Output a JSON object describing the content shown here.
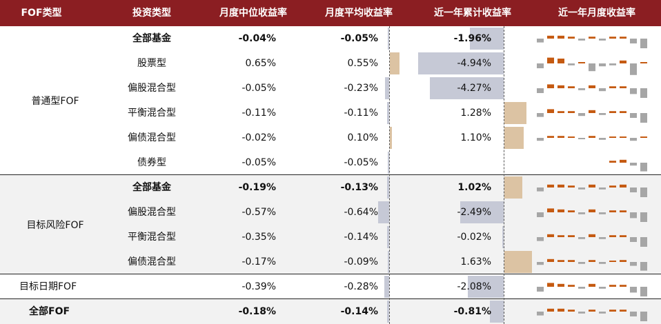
{
  "headers": [
    "FOF类型",
    "投资类型",
    "月度中位收益率",
    "月度平均收益率",
    "近一年累计收益率",
    "近一年月度收益率"
  ],
  "groups": [
    {
      "name": "普通型FOF"
    },
    {
      "name": "目标风险FOF"
    },
    {
      "name": ""
    },
    {
      "name": ""
    }
  ],
  "rows": [
    {
      "group": "",
      "type": "全部基金",
      "median": "-0.04%",
      "avg": "-0.05%",
      "cum": "-1.96%",
      "bold": true
    },
    {
      "group": "",
      "type": "股票型",
      "median": "0.65%",
      "avg": "0.55%",
      "cum": "-4.94%",
      "bold": false
    },
    {
      "group": "",
      "type": "偏股混合型",
      "median": "-0.05%",
      "avg": "-0.23%",
      "cum": "-4.27%",
      "bold": false
    },
    {
      "group": "",
      "type": "平衡混合型",
      "median": "-0.11%",
      "avg": "-0.11%",
      "cum": "1.28%",
      "bold": false
    },
    {
      "group": "",
      "type": "偏债混合型",
      "median": "-0.02%",
      "avg": "0.10%",
      "cum": "1.10%",
      "bold": false
    },
    {
      "group": "",
      "type": "债券型",
      "median": "-0.05%",
      "avg": "-0.05%",
      "cum": "",
      "bold": false
    },
    {
      "group": "",
      "type": "全部基金",
      "median": "-0.19%",
      "avg": "-0.13%",
      "cum": "1.02%",
      "bold": true
    },
    {
      "group": "",
      "type": "偏股混合型",
      "median": "-0.57%",
      "avg": "-0.64%",
      "cum": "-2.49%",
      "bold": false
    },
    {
      "group": "",
      "type": "平衡混合型",
      "median": "-0.35%",
      "avg": "-0.14%",
      "cum": "-0.02%",
      "bold": false
    },
    {
      "group": "",
      "type": "偏债混合型",
      "median": "-0.17%",
      "avg": "-0.09%",
      "cum": "1.63%",
      "bold": false
    },
    {
      "group": "目标日期FOF",
      "type": "",
      "median": "-0.39%",
      "avg": "-0.28%",
      "cum": "-2.08%",
      "bold": false
    },
    {
      "group": "全部FOF",
      "type": "",
      "median": "-0.18%",
      "avg": "-0.14%",
      "cum": "-0.81%",
      "bold": true
    }
  ],
  "colors": {
    "header": "#8b1e22",
    "orange": "#c55a11",
    "gray": "#a6a6a6",
    "negBar": "#c6c9d6",
    "posBar": "#dcc3a3"
  },
  "spark_months": [
    [
      -0.4,
      0.3,
      0.3,
      0.2,
      -0.2,
      0.2,
      -0.2,
      0.2,
      0.2,
      -0.5,
      -1.0
    ],
    [
      -0.5,
      0.6,
      0.5,
      -0.2,
      0.1,
      -0.8,
      -0.3,
      -0.2,
      0.3,
      -1.2,
      0.1
    ],
    [
      -0.5,
      0.4,
      0.3,
      0.2,
      -0.2,
      0.3,
      -0.3,
      0.2,
      0.2,
      -0.6,
      -1.0
    ],
    [
      -0.4,
      0.4,
      0.2,
      0.2,
      -0.3,
      0.3,
      -0.2,
      0.2,
      0.2,
      -0.5,
      -1.0
    ],
    [
      -0.3,
      0.2,
      0.2,
      0.1,
      -0.1,
      0.2,
      -0.2,
      0.1,
      0.1,
      -0.3,
      0.1
    ],
    [
      0,
      0,
      0,
      0,
      0,
      0,
      0,
      0.2,
      0.3,
      -0.3,
      -0.9
    ],
    [
      -0.4,
      0.3,
      0.3,
      0.2,
      -0.2,
      0.3,
      -0.2,
      0.2,
      0.3,
      -0.5,
      -1.0
    ],
    [
      -0.5,
      0.4,
      0.3,
      0.2,
      -0.2,
      0.3,
      -0.2,
      0.2,
      0.2,
      -0.6,
      -1.0
    ],
    [
      -0.4,
      0.3,
      0.2,
      0.2,
      -0.2,
      0.3,
      -0.2,
      0.2,
      0.2,
      -0.5,
      -1.0
    ],
    [
      -0.3,
      0.3,
      0.2,
      0.2,
      -0.2,
      0.2,
      -0.2,
      0.1,
      0.2,
      -0.4,
      -0.9
    ],
    [
      -0.5,
      0.4,
      0.3,
      0.2,
      -0.2,
      0.3,
      -0.2,
      0.2,
      0.2,
      -0.6,
      -1.0
    ],
    [
      -0.4,
      0.3,
      0.3,
      0.2,
      -0.2,
      0.2,
      -0.2,
      0.2,
      0.2,
      -0.5,
      -1.0
    ]
  ]
}
